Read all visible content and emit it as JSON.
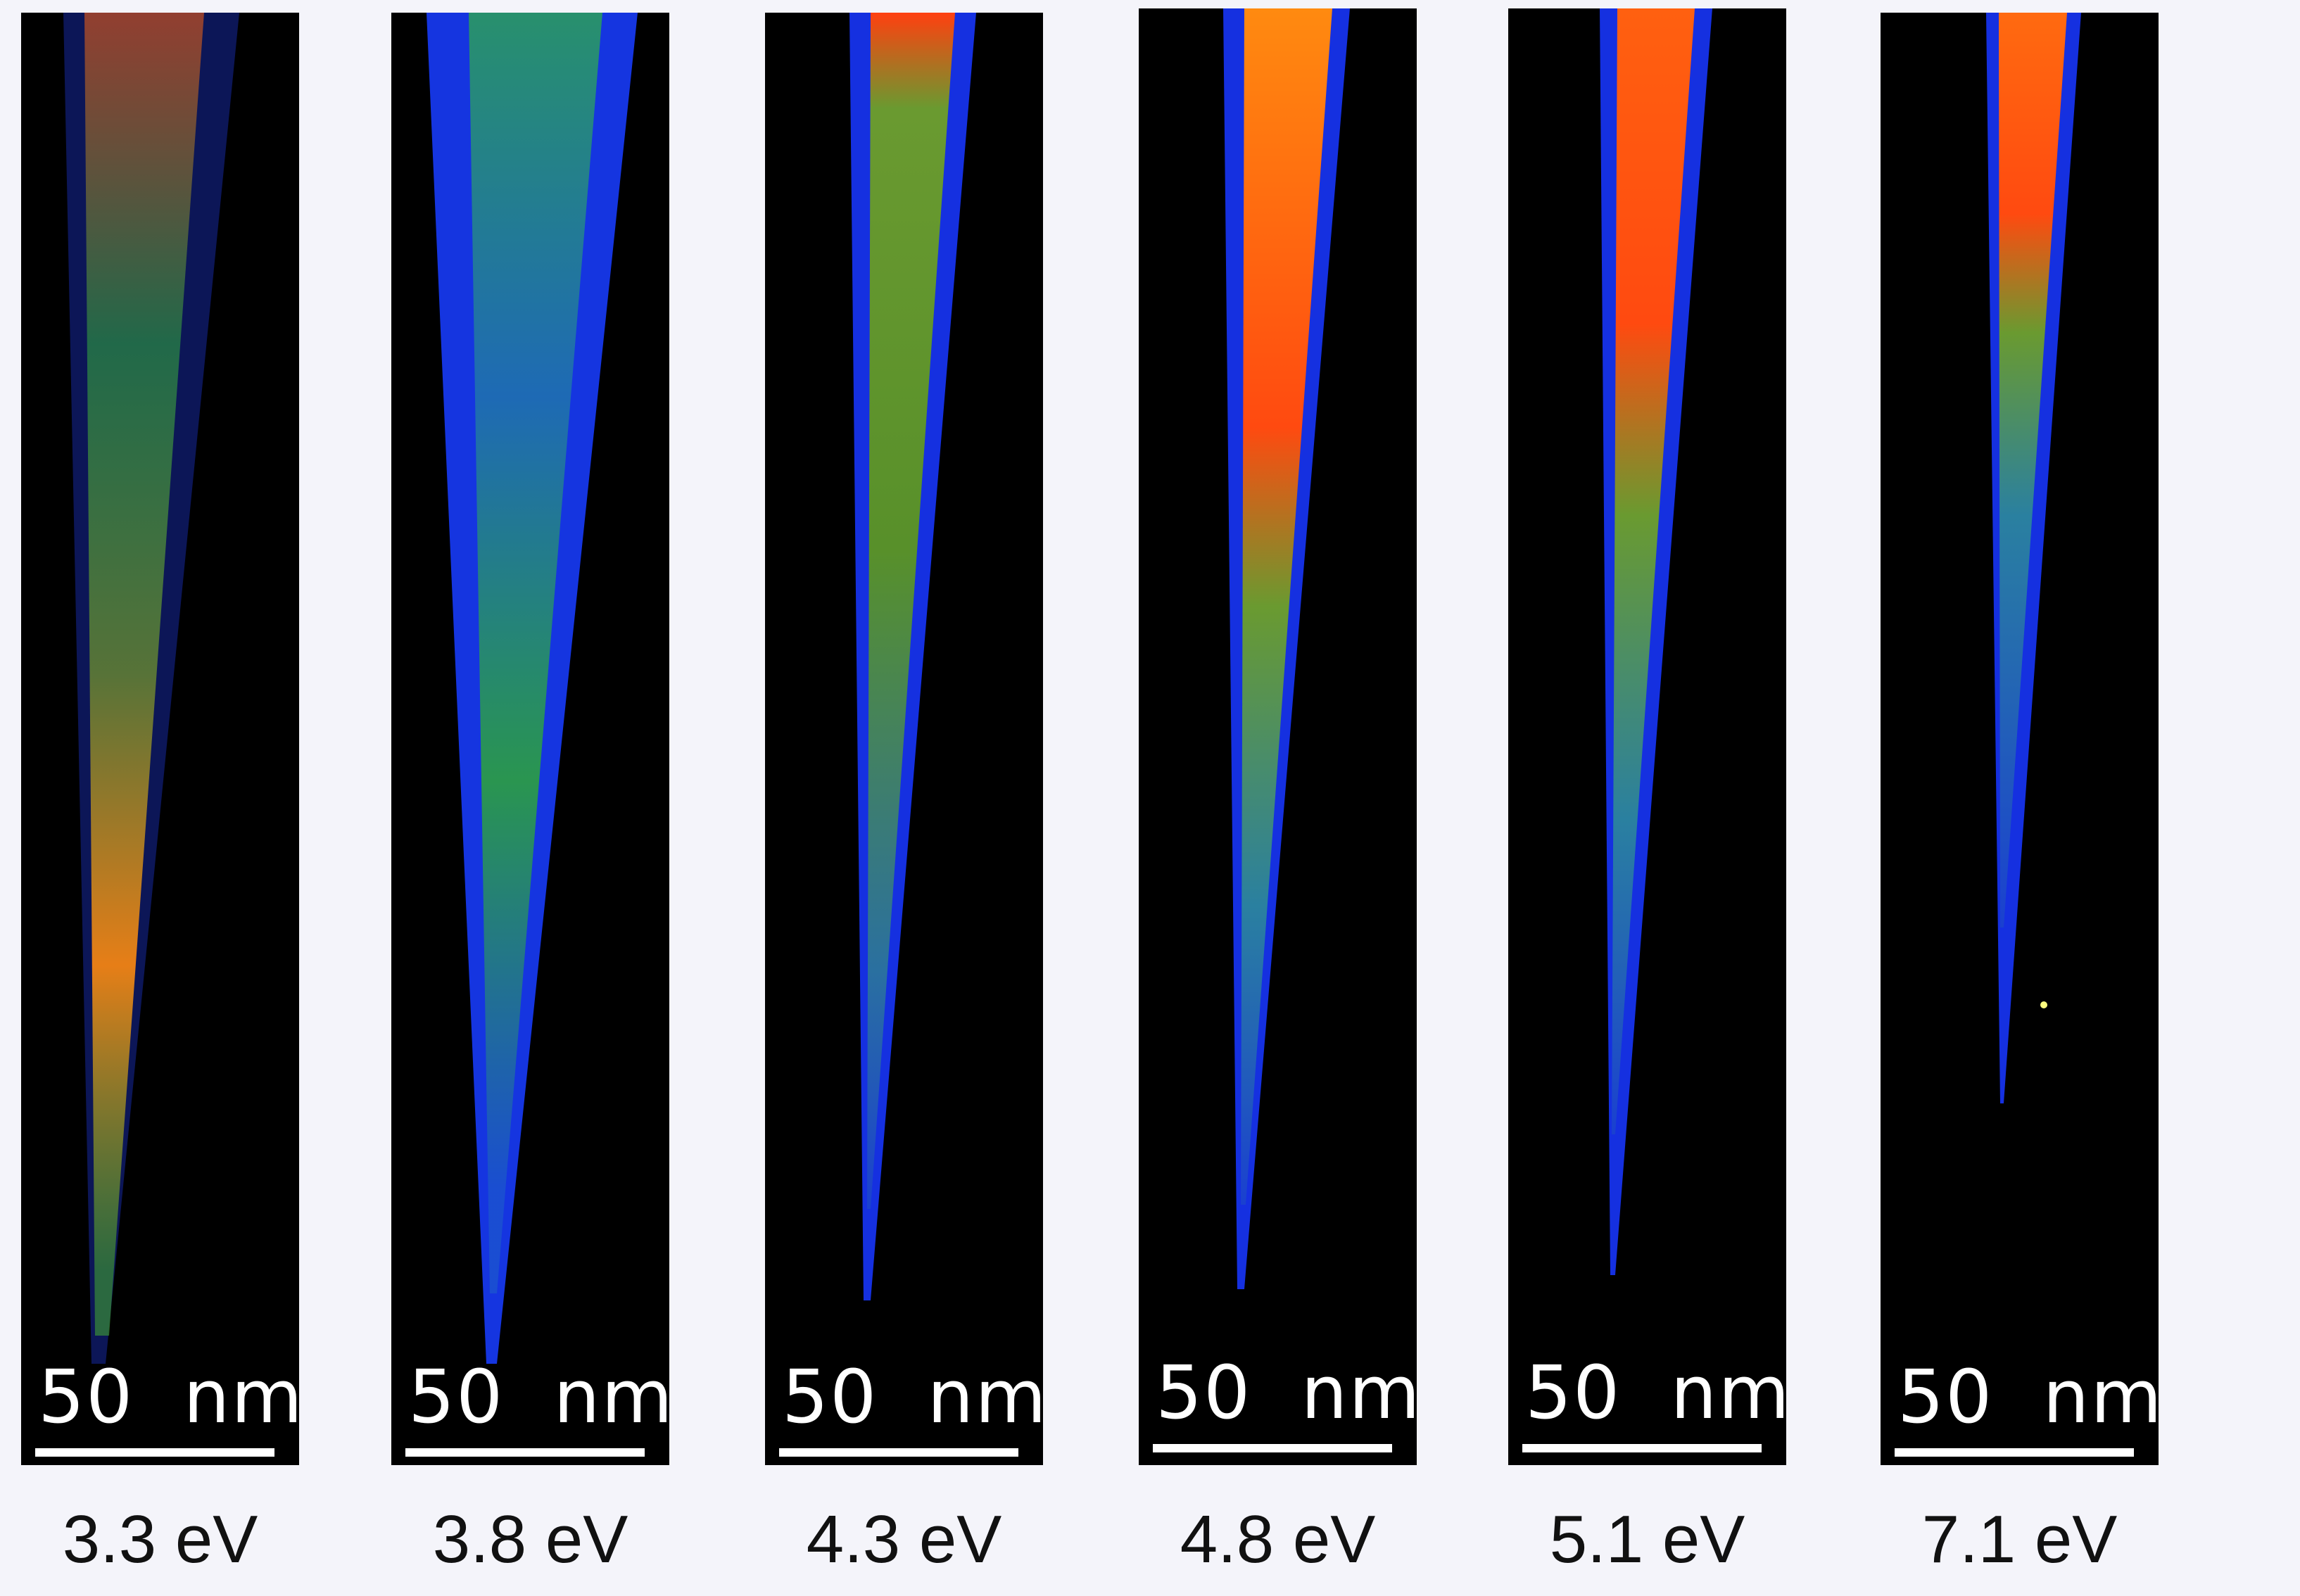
{
  "panels": [
    {
      "energy": "3.3 eV",
      "scale": "50  nm",
      "profile": "lowE"
    },
    {
      "energy": "3.8 eV",
      "scale": "50  nm",
      "profile": "green"
    },
    {
      "energy": "4.3 eV",
      "scale": "50  nm",
      "profile": "mid"
    },
    {
      "energy": "4.8 eV",
      "scale": "50  nm",
      "profile": "hot"
    },
    {
      "energy": "5.1 eV",
      "scale": "50  nm",
      "profile": "hot"
    },
    {
      "energy": "7.1 eV",
      "scale": "50  nm",
      "profile": "hot"
    }
  ],
  "colors": {
    "background": "#f4f4fa",
    "panel": "#000000",
    "low": "#1a2cff",
    "mid": "#22b030",
    "high": "#ff3a10",
    "peak": "#ffe020"
  }
}
